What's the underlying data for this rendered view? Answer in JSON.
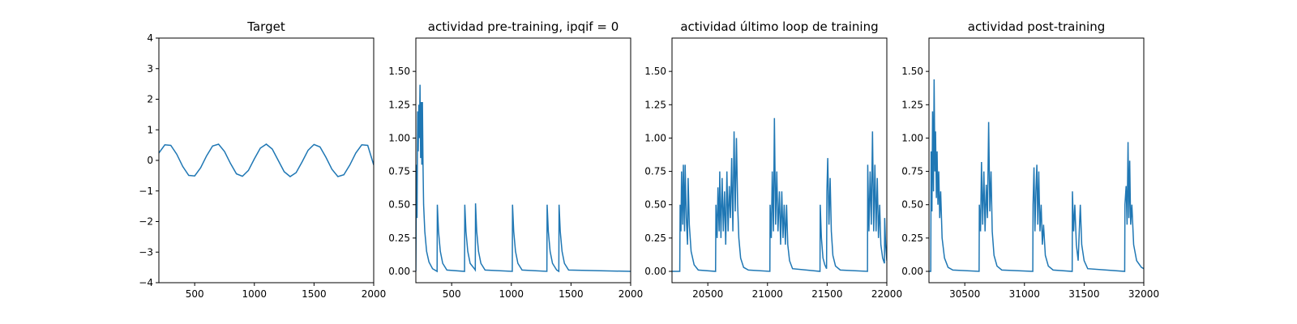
{
  "chart_data": [
    {
      "type": "line",
      "title": "Target",
      "color": "#1f77b4",
      "x": [
        200,
        250,
        300,
        350,
        400,
        450,
        500,
        550,
        600,
        650,
        700,
        750,
        800,
        850,
        900,
        950,
        1000,
        1050,
        1100,
        1150,
        1200,
        1250,
        1300,
        1350,
        1400,
        1450,
        1500,
        1550,
        1600,
        1650,
        1700,
        1750,
        1800,
        1850,
        1900,
        1950,
        2000
      ],
      "values": [
        0.24,
        0.51,
        0.49,
        0.2,
        -0.2,
        -0.49,
        -0.51,
        -0.24,
        0.15,
        0.47,
        0.53,
        0.29,
        -0.1,
        -0.44,
        -0.52,
        -0.33,
        0.05,
        0.4,
        0.53,
        0.37,
        0,
        -0.37,
        -0.53,
        -0.4,
        -0.05,
        0.33,
        0.52,
        0.44,
        0.1,
        -0.29,
        -0.53,
        -0.47,
        -0.15,
        0.24,
        0.51,
        0.49,
        -0.15
      ],
      "xlim": [
        200,
        2000
      ],
      "xticks": [
        500,
        1000,
        1500,
        2000
      ],
      "ylim": [
        -4,
        4
      ],
      "yticks": [
        {
          "value": -4,
          "label": "−4"
        },
        {
          "value": -3,
          "label": "−3"
        },
        {
          "value": -2,
          "label": "−2"
        },
        {
          "value": -1,
          "label": "−1"
        },
        0,
        1,
        2,
        3,
        4
      ]
    },
    {
      "type": "line",
      "title": "actividad pre-training, ipqif = 0",
      "color": "#1f77b4",
      "x": [
        200,
        205,
        210,
        215,
        220,
        225,
        230,
        235,
        240,
        245,
        250,
        255,
        260,
        265,
        275,
        290,
        310,
        340,
        378,
        380,
        390,
        405,
        425,
        460,
        608,
        610,
        620,
        635,
        655,
        690,
        698,
        700,
        710,
        725,
        745,
        780,
        1008,
        1010,
        1020,
        1035,
        1055,
        1090,
        1298,
        1300,
        1310,
        1325,
        1345,
        1380,
        1398,
        1400,
        1410,
        1425,
        1445,
        1480,
        2000
      ],
      "values": [
        0,
        0.8,
        0.4,
        1.2,
        0.9,
        1.25,
        1.0,
        1.4,
        0.85,
        1.27,
        0.8,
        1.27,
        0.8,
        0.5,
        0.3,
        0.15,
        0.07,
        0.02,
        0,
        0.5,
        0.3,
        0.15,
        0.06,
        0.01,
        0,
        0.5,
        0.3,
        0.15,
        0.06,
        0.02,
        0.01,
        0.51,
        0.3,
        0.15,
        0.06,
        0.01,
        0,
        0.5,
        0.3,
        0.15,
        0.06,
        0.01,
        0,
        0.5,
        0.3,
        0.15,
        0.06,
        0.01,
        0,
        0.5,
        0.3,
        0.15,
        0.06,
        0.01,
        0
      ],
      "xlim": [
        200,
        2000
      ],
      "xticks": [
        500,
        1000,
        1500,
        2000
      ],
      "ylim": [
        -0.085,
        1.75
      ],
      "yticks": [
        {
          "value": 0,
          "label": "0.00"
        },
        {
          "value": 0.25,
          "label": "0.25"
        },
        {
          "value": 0.5,
          "label": "0.50"
        },
        {
          "value": 0.75,
          "label": "0.75"
        },
        {
          "value": 1,
          "label": "1.00"
        },
        {
          "value": 1.25,
          "label": "1.25"
        },
        {
          "value": 1.5,
          "label": "1.50"
        }
      ]
    },
    {
      "type": "line",
      "title": "actividad último loop de training",
      "color": "#1f77b4",
      "x": [
        20200,
        20265,
        20268,
        20275,
        20280,
        20290,
        20295,
        20305,
        20310,
        20320,
        20330,
        20335,
        20345,
        20360,
        20385,
        20420,
        20565,
        20568,
        20578,
        20585,
        20595,
        20600,
        20610,
        20620,
        20630,
        20640,
        20650,
        20660,
        20670,
        20680,
        20690,
        20700,
        20710,
        20720,
        20730,
        20740,
        20750,
        20760,
        20775,
        20800,
        20840,
        21020,
        21022,
        21032,
        21040,
        21050,
        21058,
        21068,
        21078,
        21088,
        21100,
        21110,
        21120,
        21130,
        21140,
        21150,
        21160,
        21170,
        21185,
        21210,
        21440,
        21442,
        21452,
        21465,
        21480,
        21495,
        21498,
        21505,
        21515,
        21525,
        21535,
        21548,
        21570,
        21610,
        21838,
        21840,
        21850,
        21860,
        21870,
        21880,
        21890,
        21900,
        21910,
        21920,
        21930,
        21940,
        21950,
        21965,
        21980,
        21982,
        21990,
        22000
      ],
      "values": [
        0,
        0,
        0.5,
        0.3,
        0.75,
        0.35,
        0.8,
        0.3,
        0.8,
        0.4,
        0.2,
        0.7,
        0.35,
        0.15,
        0.05,
        0.01,
        0,
        0.5,
        0.25,
        0.63,
        0.3,
        0.75,
        0.25,
        0.7,
        0.3,
        0.6,
        0.2,
        0.75,
        0.3,
        0.64,
        0.4,
        0.85,
        0.3,
        1.05,
        0.45,
        1.0,
        0.5,
        0.25,
        0.1,
        0.03,
        0.01,
        0,
        0.5,
        0.25,
        0.75,
        0.3,
        1.15,
        0.35,
        0.75,
        0.3,
        0.6,
        0.2,
        0.6,
        0.25,
        0.5,
        0.2,
        0.5,
        0.2,
        0.08,
        0.02,
        0,
        0.5,
        0.25,
        0.1,
        0.05,
        0.02,
        0.6,
        0.85,
        0.35,
        0.7,
        0.3,
        0.12,
        0.04,
        0.01,
        0,
        0.8,
        0.3,
        0.75,
        0.35,
        1.05,
        0.3,
        0.8,
        0.3,
        0.7,
        0.25,
        0.5,
        0.2,
        0.1,
        0.06,
        0.4,
        0.2,
        0.08
      ],
      "xlim": [
        20200,
        22000
      ],
      "xticks": [
        20500,
        21000,
        21500,
        22000
      ],
      "ylim": [
        -0.085,
        1.75
      ],
      "yticks": [
        {
          "value": 0,
          "label": "0.00"
        },
        {
          "value": 0.25,
          "label": "0.25"
        },
        {
          "value": 0.5,
          "label": "0.50"
        },
        {
          "value": 0.75,
          "label": "0.75"
        },
        {
          "value": 1,
          "label": "1.00"
        },
        {
          "value": 1.25,
          "label": "1.25"
        },
        {
          "value": 1.5,
          "label": "1.50"
        }
      ]
    },
    {
      "type": "line",
      "title": "actividad post-training",
      "color": "#1f77b4",
      "x": [
        30200,
        30215,
        30218,
        30225,
        30230,
        30238,
        30243,
        30250,
        30255,
        30262,
        30268,
        30275,
        30282,
        30290,
        30298,
        30310,
        30330,
        30360,
        30400,
        30620,
        30622,
        30632,
        30640,
        30650,
        30660,
        30670,
        30680,
        30690,
        30700,
        30710,
        30720,
        30730,
        30745,
        30770,
        30810,
        31070,
        31072,
        31080,
        31088,
        31096,
        31104,
        31112,
        31120,
        31130,
        31140,
        31150,
        31160,
        31175,
        31200,
        31240,
        31400,
        31402,
        31412,
        31422,
        31435,
        31450,
        31468,
        31480,
        31500,
        31530,
        31840,
        31842,
        31852,
        31860,
        31868,
        31875,
        31882,
        31890,
        31900,
        31915,
        31940,
        31980,
        32000
      ],
      "values": [
        0,
        0,
        0.9,
        0.45,
        1.2,
        0.6,
        1.44,
        0.75,
        1.05,
        0.55,
        0.9,
        0.5,
        0.75,
        0.4,
        0.6,
        0.25,
        0.1,
        0.03,
        0.01,
        0,
        0.5,
        0.3,
        0.82,
        0.35,
        0.75,
        0.3,
        0.65,
        0.4,
        1.12,
        0.45,
        0.75,
        0.3,
        0.12,
        0.04,
        0.01,
        0,
        0.5,
        0.78,
        0.3,
        0.6,
        0.8,
        0.35,
        0.75,
        0.3,
        0.5,
        0.2,
        0.35,
        0.12,
        0.04,
        0.01,
        0,
        0.6,
        0.3,
        0.5,
        0.2,
        0.08,
        0.5,
        0.2,
        0.08,
        0.02,
        0,
        0.5,
        0.64,
        0.35,
        0.97,
        0.4,
        0.83,
        0.35,
        0.5,
        0.2,
        0.08,
        0.03,
        0.02
      ],
      "xlim": [
        30200,
        32000
      ],
      "xticks": [
        30500,
        31000,
        31500,
        32000
      ],
      "ylim": [
        -0.085,
        1.75
      ],
      "yticks": [
        {
          "value": 0,
          "label": "0.00"
        },
        {
          "value": 0.25,
          "label": "0.25"
        },
        {
          "value": 0.5,
          "label": "0.50"
        },
        {
          "value": 0.75,
          "label": "0.75"
        },
        {
          "value": 1,
          "label": "1.00"
        },
        {
          "value": 1.25,
          "label": "1.25"
        },
        {
          "value": 1.5,
          "label": "1.50"
        }
      ]
    }
  ]
}
